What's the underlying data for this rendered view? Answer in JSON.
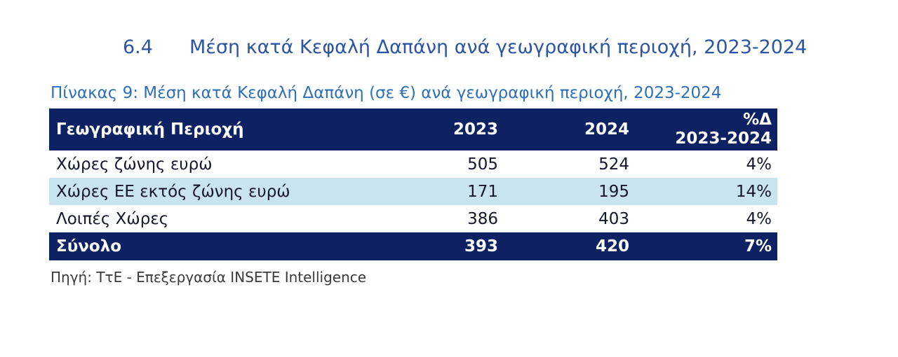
{
  "heading": {
    "number": "6.4",
    "title": "Μέση κατά Κεφαλή Δαπάνη ανά γεωγραφική περιοχή, 2023-2024"
  },
  "caption": "Πίνακας 9: Μέση κατά Κεφαλή Δαπάνη (σε €) ανά γεωγραφική περιοχή, 2023-2024",
  "table": {
    "header": {
      "region": "Γεωγραφική Περιοχή",
      "y2023": "2023",
      "y2024": "2024",
      "delta_line1": "%Δ",
      "delta_line2": "2023-2024"
    },
    "rows": [
      {
        "region": "Χώρες ζώνης ευρώ",
        "y2023": "505",
        "y2024": "524",
        "delta": "4%"
      },
      {
        "region": "Χώρες ΕΕ εκτός ζώνης ευρώ",
        "y2023": "171",
        "y2024": "195",
        "delta": "14%"
      },
      {
        "region": "Λοιπές Χώρες",
        "y2023": "386",
        "y2024": "403",
        "delta": "4%"
      }
    ],
    "total": {
      "region": "Σύνολο",
      "y2023": "393",
      "y2024": "420",
      "delta": "7%"
    }
  },
  "source": "Πηγή: ΤτΕ - Επεξεργασία INSETE Intelligence",
  "colors": {
    "header_navy": "#0d2163",
    "row_light_blue": "#c9e4f0",
    "heading_blue": "#2b55a5",
    "caption_blue": "#2e6fb7",
    "body_text": "#15172b",
    "source_gray": "#3a3a3a"
  }
}
